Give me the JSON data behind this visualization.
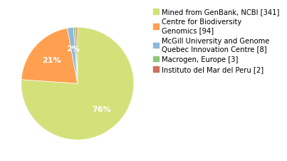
{
  "labels": [
    "Mined from GenBank, NCBI [341]",
    "Centre for Biodiversity\nGenomics [94]",
    "McGill University and Genome\nQuebec Innovation Centre [8]",
    "Macrogen, Europe [3]",
    "Instituto del Mar del Peru [2]"
  ],
  "values": [
    341,
    94,
    8,
    3,
    2
  ],
  "colors": [
    "#d4e17a",
    "#ffa050",
    "#90b8d8",
    "#90c878",
    "#d07060"
  ],
  "startangle": 90,
  "background_color": "#ffffff",
  "text_color": "#ffffff",
  "fontsize_pct": 8,
  "fontsize_legend": 7.2
}
